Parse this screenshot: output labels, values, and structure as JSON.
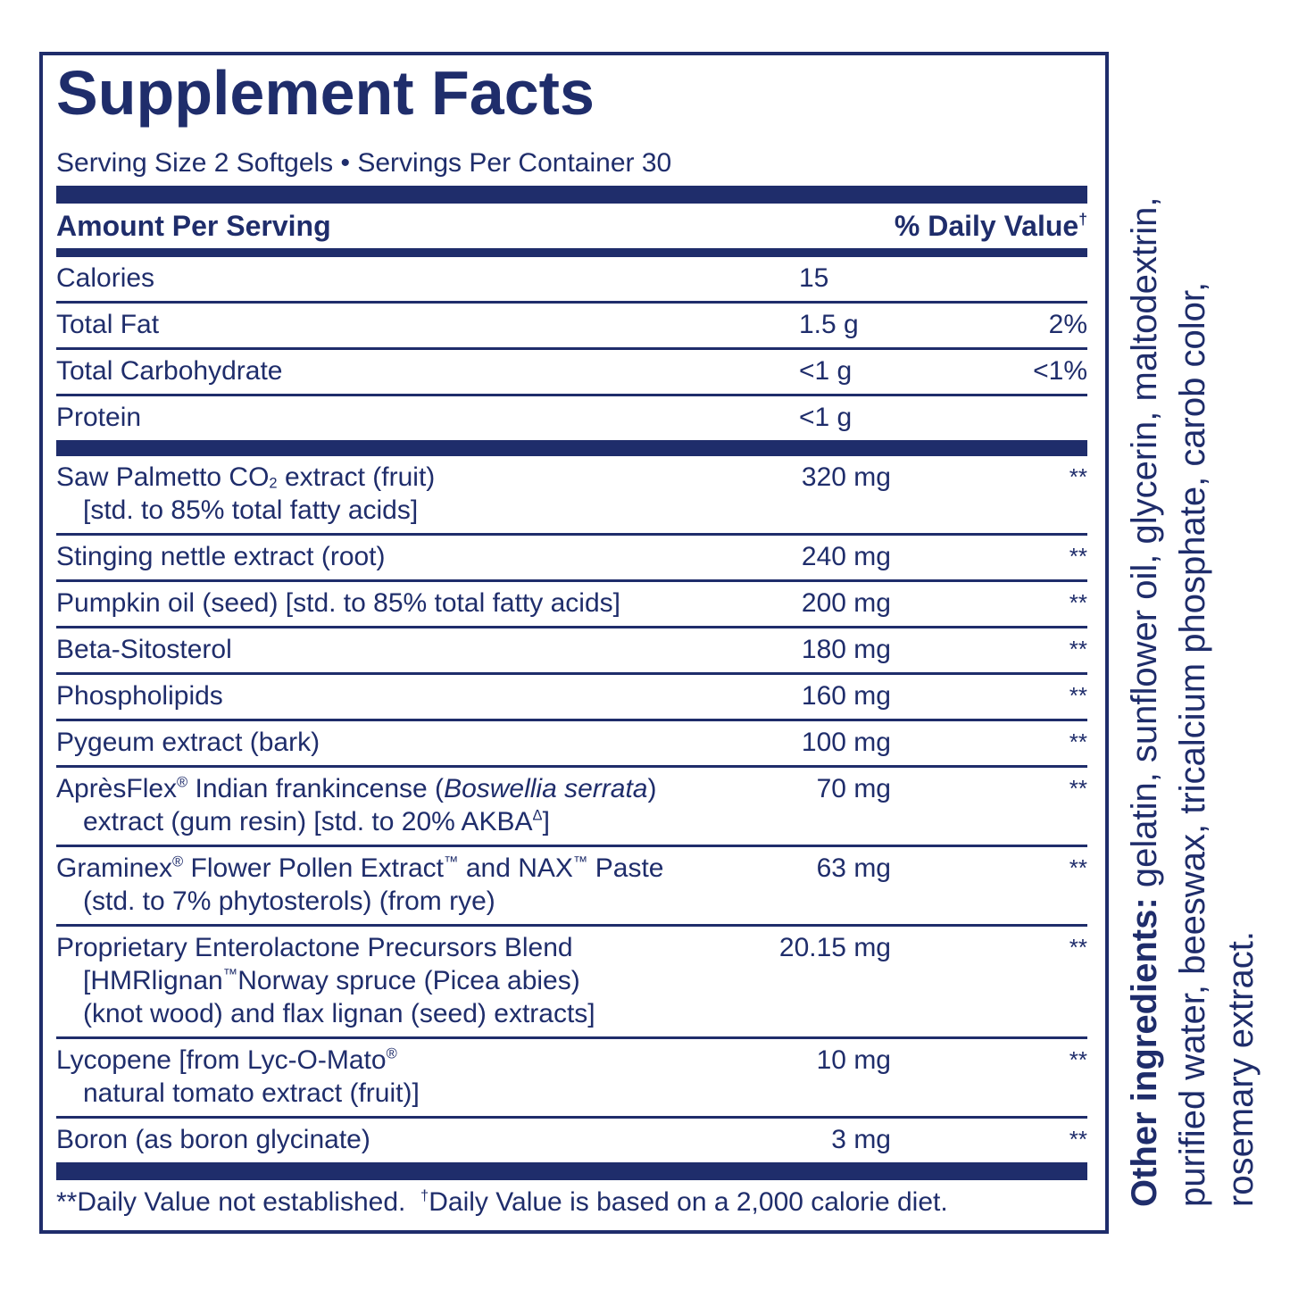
{
  "header": {
    "title": "Supplement Facts",
    "serving": "Serving Size 2 Softgels • Servings Per Container 30",
    "amount_per_serving": "Amount Per Serving",
    "daily_value": "% Daily Value",
    "daily_value_mark": "†"
  },
  "nutrients": [
    {
      "name": "Calories",
      "amount": "15"
    },
    {
      "name": "Total Fat",
      "amount": "1.5 g",
      "daily_value": "2%"
    },
    {
      "name": "Total Carbohydrate",
      "amount": "<1 g",
      "daily_value": "<1%"
    },
    {
      "name": "Protein",
      "amount": "<1 g"
    }
  ],
  "ingredients": [
    {
      "name": [
        [
          "Saw Palmetto CO",
          {
            "text": "2",
            "style": "sub"
          },
          " extract (fruit)"
        ],
        [
          "[std. to 85% total fatty acids]"
        ]
      ],
      "amount": "320 mg",
      "daily_value": "**"
    },
    {
      "name": [
        [
          "Stinging nettle extract (root)"
        ]
      ],
      "amount": "240 mg",
      "daily_value": "**"
    },
    {
      "name": [
        [
          "Pumpkin oil (seed) [std. to 85% total fatty acids]"
        ]
      ],
      "amount": "200 mg",
      "daily_value": "**"
    },
    {
      "name": [
        [
          "Beta-Sitosterol"
        ]
      ],
      "amount": "180 mg",
      "daily_value": "**"
    },
    {
      "name": [
        [
          "Phospholipids"
        ]
      ],
      "amount": "160 mg",
      "daily_value": "**"
    },
    {
      "name": [
        [
          "Pygeum extract (bark)"
        ]
      ],
      "amount": "100 mg",
      "daily_value": "**"
    },
    {
      "name": [
        [
          "AprèsFlex",
          {
            "text": "®",
            "style": "sup"
          },
          " Indian frankincense (",
          {
            "text": "Boswellia serrata",
            "style": "italic"
          },
          ")"
        ],
        [
          "extract (gum resin) [std. to 20% AKBA",
          {
            "text": "Δ",
            "style": "sup"
          },
          "]"
        ]
      ],
      "amount": "70 mg",
      "daily_value": "**"
    },
    {
      "name": [
        [
          "Graminex",
          {
            "text": "®",
            "style": "sup"
          },
          " Flower Pollen Extract",
          {
            "text": "™",
            "style": "sup"
          },
          " and NAX",
          {
            "text": "™",
            "style": "sup"
          },
          " Paste"
        ],
        [
          "(std. to 7% phytosterols) (from rye)"
        ]
      ],
      "amount": "63 mg",
      "daily_value": "**"
    },
    {
      "name": [
        [
          "Proprietary Enterolactone Precursors Blend"
        ],
        [
          "[HMRlignan",
          {
            "text": "™",
            "style": "sup"
          },
          "Norway spruce (Picea abies)"
        ],
        [
          "(knot wood) and flax lignan (seed) extracts]"
        ]
      ],
      "amount": "20.15 mg",
      "daily_value": "**"
    },
    {
      "name": [
        [
          "Lycopene [from Lyc-O-Mato",
          {
            "text": "®",
            "style": "sup"
          }
        ],
        [
          "natural tomato extract (fruit)]"
        ]
      ],
      "amount": "10 mg",
      "daily_value": "**"
    },
    {
      "name": [
        [
          "Boron (as boron glycinate)"
        ]
      ],
      "amount": "3 mg",
      "daily_value": "**"
    }
  ],
  "footnote": {
    "not_established": "**Daily Value not established.",
    "dagger": "†",
    "based_on": "Daily Value is based on a 2,000 calorie diet."
  },
  "other_ingredients": {
    "label": "Other ingredients:",
    "lines": [
      "gelatin, sunflower oil, glycerin, maltodextrin,",
      "purified water, beeswax, tricalcium phosphate, carob color,",
      "rosemary extract."
    ]
  }
}
